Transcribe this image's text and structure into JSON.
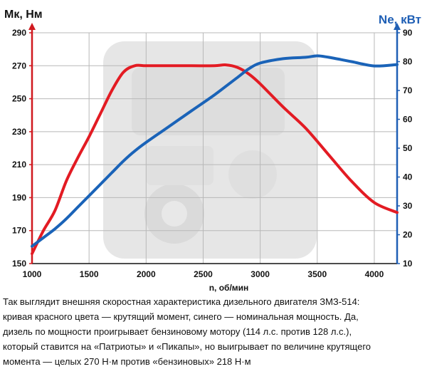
{
  "chart_data": {
    "type": "line",
    "y_left_label": "Мк, Нм",
    "y_right_label": "Ne, кВт",
    "xlabel": "n, об/мин",
    "xlim": [
      1000,
      4200
    ],
    "ylim_left": [
      150,
      290
    ],
    "ylim_right": [
      10,
      90
    ],
    "x_ticks": [
      1000,
      1500,
      2000,
      2500,
      3000,
      3500,
      4000
    ],
    "y_left_ticks": [
      150,
      170,
      190,
      210,
      230,
      250,
      270,
      290
    ],
    "y_right_ticks": [
      10,
      20,
      30,
      40,
      50,
      60,
      70,
      80,
      90
    ],
    "grid": true,
    "series": [
      {
        "name": "Крутящий момент",
        "axis": "left",
        "color": "#e31b23",
        "x": [
          1000,
          1100,
          1200,
          1300,
          1400,
          1500,
          1600,
          1700,
          1800,
          1900,
          2000,
          2200,
          2400,
          2600,
          2700,
          2800,
          2900,
          3000,
          3200,
          3400,
          3600,
          3800,
          4000,
          4200
        ],
        "values": [
          156,
          170,
          182,
          200,
          214,
          227,
          241,
          255,
          266,
          270,
          270,
          270,
          270,
          270,
          270.5,
          269,
          265,
          259,
          245,
          232,
          216,
          200,
          187,
          181
        ]
      },
      {
        "name": "Номинальная мощность",
        "axis": "right",
        "color": "#1a63b8",
        "x": [
          1000,
          1100,
          1200,
          1300,
          1400,
          1500,
          1600,
          1700,
          1800,
          1900,
          2000,
          2200,
          2400,
          2600,
          2800,
          2900,
          3000,
          3200,
          3400,
          3500,
          3600,
          3800,
          4000,
          4200
        ],
        "values": [
          16,
          19,
          22,
          25.5,
          29.5,
          33.5,
          37.5,
          41.5,
          45.5,
          49,
          52,
          57.5,
          63,
          68.5,
          74.5,
          77.5,
          79.5,
          81,
          81.5,
          82,
          81.5,
          80,
          78.5,
          79
        ]
      }
    ]
  },
  "caption": [
    "Так выглядит внешняя скоростная характеристика дизельного двигателя ЗМЗ-514:",
    "кривая красного цвета — крутящий момент, синего — номинальная мощность. Да,",
    "дизель по мощности проигрывает бензиновому мотору (114 л.с. против 128 л.с.),",
    "который ставится на «Патриоты» и «Пикапы», но выигрывает по величине крутящего",
    "момента — целых 270 Н·м против «бензиновых» 218 Н·м"
  ]
}
